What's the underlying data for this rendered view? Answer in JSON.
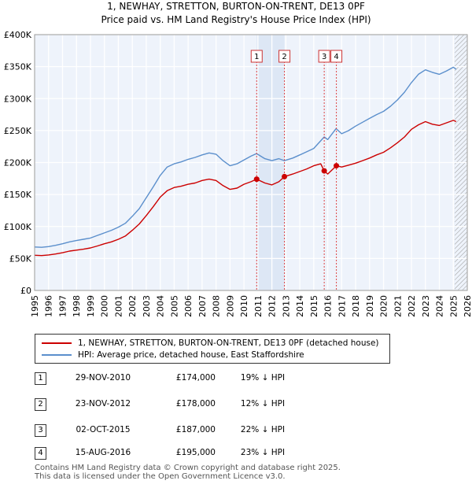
{
  "chart_data": {
    "type": "line",
    "title": "1, NEWHAY, STRETTON, BURTON-ON-TRENT, DE13 0PF",
    "subtitle": "Price paid vs. HM Land Registry's House Price Index (HPI)",
    "xlabel": "",
    "ylabel": "",
    "xlim": [
      1995,
      2026
    ],
    "ylim": [
      0,
      400000
    ],
    "x_ticks": [
      "1995",
      "1996",
      "1997",
      "1998",
      "1999",
      "2000",
      "2001",
      "2002",
      "2003",
      "2004",
      "2005",
      "2006",
      "2007",
      "2008",
      "2009",
      "2010",
      "2011",
      "2012",
      "2013",
      "2014",
      "2015",
      "2016",
      "2017",
      "2018",
      "2019",
      "2020",
      "2021",
      "2022",
      "2023",
      "2024",
      "2025",
      "2026"
    ],
    "y_ticks": [
      {
        "value": 0,
        "label": "£0"
      },
      {
        "value": 50000,
        "label": "£50K"
      },
      {
        "value": 100000,
        "label": "£100K"
      },
      {
        "value": 150000,
        "label": "£150K"
      },
      {
        "value": 200000,
        "label": "£200K"
      },
      {
        "value": 250000,
        "label": "£250K"
      },
      {
        "value": 300000,
        "label": "£300K"
      },
      {
        "value": 350000,
        "label": "£350K"
      },
      {
        "value": 400000,
        "label": "£400K"
      }
    ],
    "grid": true,
    "shaded_period": [
      2010.91,
      2012.9
    ],
    "forecast_hatch_from": 2025.1,
    "series": [
      {
        "name": "HPI: Average price, detached house, East Staffordshire",
        "color": "#5b8fcc",
        "points": [
          [
            1995.0,
            68000
          ],
          [
            1995.5,
            67500
          ],
          [
            1996.0,
            68500
          ],
          [
            1996.5,
            70500
          ],
          [
            1997.0,
            73000
          ],
          [
            1997.5,
            76000
          ],
          [
            1998.0,
            78000
          ],
          [
            1998.5,
            80000
          ],
          [
            1999.0,
            82000
          ],
          [
            1999.5,
            86000
          ],
          [
            2000.0,
            90000
          ],
          [
            2000.5,
            94000
          ],
          [
            2001.0,
            99000
          ],
          [
            2001.5,
            105000
          ],
          [
            2002.0,
            116000
          ],
          [
            2002.5,
            128000
          ],
          [
            2003.0,
            145000
          ],
          [
            2003.5,
            162000
          ],
          [
            2004.0,
            180000
          ],
          [
            2004.5,
            193000
          ],
          [
            2005.0,
            198000
          ],
          [
            2005.5,
            201000
          ],
          [
            2006.0,
            205000
          ],
          [
            2006.5,
            208000
          ],
          [
            2007.0,
            212000
          ],
          [
            2007.5,
            215000
          ],
          [
            2008.0,
            213000
          ],
          [
            2008.5,
            203000
          ],
          [
            2009.0,
            195000
          ],
          [
            2009.5,
            198000
          ],
          [
            2010.0,
            204000
          ],
          [
            2010.5,
            210000
          ],
          [
            2010.9,
            214000
          ],
          [
            2011.5,
            206000
          ],
          [
            2012.0,
            203000
          ],
          [
            2012.5,
            206000
          ],
          [
            2012.9,
            203000
          ],
          [
            2013.5,
            207000
          ],
          [
            2014.0,
            212000
          ],
          [
            2014.5,
            217000
          ],
          [
            2015.0,
            222000
          ],
          [
            2015.75,
            240000
          ],
          [
            2016.0,
            236000
          ],
          [
            2016.6,
            253000
          ],
          [
            2017.0,
            245000
          ],
          [
            2017.5,
            250000
          ],
          [
            2018.0,
            257000
          ],
          [
            2018.5,
            263000
          ],
          [
            2019.0,
            269000
          ],
          [
            2019.5,
            275000
          ],
          [
            2020.0,
            280000
          ],
          [
            2020.5,
            288000
          ],
          [
            2021.0,
            298000
          ],
          [
            2021.5,
            310000
          ],
          [
            2022.0,
            325000
          ],
          [
            2022.5,
            338000
          ],
          [
            2023.0,
            345000
          ],
          [
            2023.5,
            341000
          ],
          [
            2024.0,
            338000
          ],
          [
            2024.5,
            343000
          ],
          [
            2025.0,
            349000
          ],
          [
            2025.2,
            346000
          ]
        ]
      },
      {
        "name": "1, NEWHAY, STRETTON, BURTON-ON-TRENT, DE13 0PF (detached house)",
        "color": "#cc0000",
        "points": [
          [
            1995.0,
            55000
          ],
          [
            1995.5,
            54500
          ],
          [
            1996.0,
            55500
          ],
          [
            1996.5,
            57000
          ],
          [
            1997.0,
            59000
          ],
          [
            1997.5,
            61500
          ],
          [
            1998.0,
            63000
          ],
          [
            1998.5,
            64500
          ],
          [
            1999.0,
            66500
          ],
          [
            1999.5,
            69500
          ],
          [
            2000.0,
            73000
          ],
          [
            2000.5,
            76000
          ],
          [
            2001.0,
            80000
          ],
          [
            2001.5,
            85000
          ],
          [
            2002.0,
            94000
          ],
          [
            2002.5,
            104000
          ],
          [
            2003.0,
            117000
          ],
          [
            2003.5,
            131000
          ],
          [
            2004.0,
            146000
          ],
          [
            2004.5,
            156000
          ],
          [
            2005.0,
            161000
          ],
          [
            2005.5,
            163000
          ],
          [
            2006.0,
            166000
          ],
          [
            2006.5,
            168000
          ],
          [
            2007.0,
            172000
          ],
          [
            2007.5,
            174000
          ],
          [
            2008.0,
            172000
          ],
          [
            2008.5,
            164000
          ],
          [
            2009.0,
            158000
          ],
          [
            2009.5,
            160000
          ],
          [
            2010.0,
            166000
          ],
          [
            2010.5,
            170000
          ],
          [
            2010.91,
            174000
          ],
          [
            2011.5,
            168000
          ],
          [
            2012.0,
            165000
          ],
          [
            2012.5,
            170000
          ],
          [
            2012.9,
            178000
          ],
          [
            2013.5,
            182000
          ],
          [
            2014.0,
            186000
          ],
          [
            2014.5,
            190000
          ],
          [
            2015.0,
            195000
          ],
          [
            2015.5,
            198000
          ],
          [
            2015.75,
            187000
          ],
          [
            2016.0,
            182000
          ],
          [
            2016.62,
            195000
          ],
          [
            2017.0,
            193000
          ],
          [
            2017.5,
            196000
          ],
          [
            2018.0,
            199000
          ],
          [
            2018.5,
            203000
          ],
          [
            2019.0,
            207000
          ],
          [
            2019.5,
            212000
          ],
          [
            2020.0,
            216000
          ],
          [
            2020.5,
            223000
          ],
          [
            2021.0,
            231000
          ],
          [
            2021.5,
            240000
          ],
          [
            2022.0,
            252000
          ],
          [
            2022.5,
            259000
          ],
          [
            2023.0,
            264000
          ],
          [
            2023.5,
            260000
          ],
          [
            2024.0,
            258000
          ],
          [
            2024.5,
            262000
          ],
          [
            2025.0,
            266000
          ],
          [
            2025.2,
            264000
          ]
        ]
      }
    ],
    "sales": [
      {
        "label": "1",
        "x": 2010.91,
        "value": 174000
      },
      {
        "label": "2",
        "x": 2012.9,
        "value": 178000
      },
      {
        "label": "3",
        "x": 2015.75,
        "value": 187000
      },
      {
        "label": "4",
        "x": 2016.62,
        "value": 195000
      }
    ]
  },
  "legend": [
    {
      "label": "1, NEWHAY, STRETTON, BURTON-ON-TRENT, DE13 0PF (detached house)",
      "color": "#cc0000"
    },
    {
      "label": "HPI: Average price, detached house, East Staffordshire",
      "color": "#5b8fcc"
    }
  ],
  "sales_table": [
    {
      "num": "1",
      "date": "29-NOV-2010",
      "price": "£174,000",
      "hpi": "19% ↓ HPI"
    },
    {
      "num": "2",
      "date": "23-NOV-2012",
      "price": "£178,000",
      "hpi": "12% ↓ HPI"
    },
    {
      "num": "3",
      "date": "02-OCT-2015",
      "price": "£187,000",
      "hpi": "22% ↓ HPI"
    },
    {
      "num": "4",
      "date": "15-AUG-2016",
      "price": "£195,000",
      "hpi": "23% ↓ HPI"
    }
  ],
  "footer": {
    "line1": "Contains HM Land Registry data © Crown copyright and database right 2025.",
    "line2": "This data is licensed under the Open Government Licence v3.0."
  }
}
